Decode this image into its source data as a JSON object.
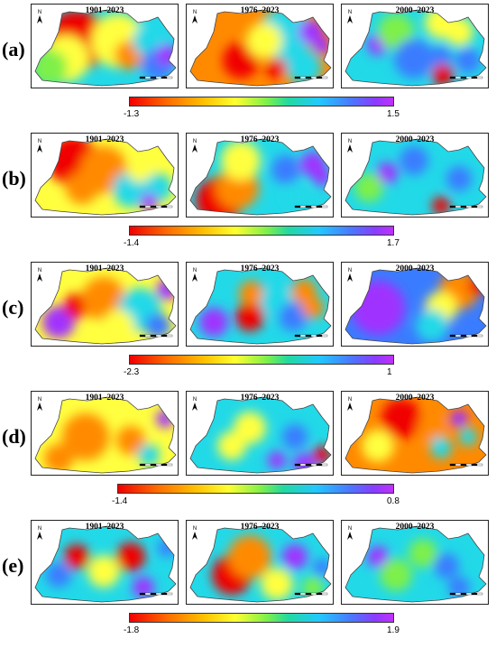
{
  "icons": {
    "north_arrow": "north-arrow-icon",
    "scale_bar": "scale-bar-icon"
  },
  "north_label": "N",
  "rows": [
    {
      "label": "(a)",
      "periods": [
        "1901–2023",
        "1976–2023",
        "2000–2023"
      ],
      "min_label": "-1.3",
      "max_label": "1.5",
      "min": -1.3,
      "max": 1.5
    },
    {
      "label": "(b)",
      "periods": [
        "1901–2023",
        "1976–2023",
        "2000–2023"
      ],
      "min_label": "-1.4",
      "max_label": "1.7",
      "min": -1.4,
      "max": 1.7
    },
    {
      "label": "(c)",
      "periods": [
        "1901–2023",
        "1976–2023",
        "2000–2023"
      ],
      "min_label": "-2.3",
      "max_label": "1",
      "min": -2.3,
      "max": 1
    },
    {
      "label": "(d)",
      "periods": [
        "1901–2023",
        "1976–2023",
        "2000–2023"
      ],
      "min_label": "-1.4",
      "max_label": "0.8",
      "min": -1.4,
      "max": 0.8
    },
    {
      "label": "(e)",
      "periods": [
        "1901–2023",
        "1976–2023",
        "2000–2023"
      ],
      "min_label": "-1.8",
      "max_label": "1.9",
      "min": -1.8,
      "max": 1.9
    }
  ],
  "colors": {
    "red": "#f00000",
    "orange": "#ff8a00",
    "yellow": "#ffff40",
    "green": "#7ef04a",
    "cyan": "#22d9e8",
    "blue": "#3a7cff",
    "purple": "#a030ff"
  }
}
